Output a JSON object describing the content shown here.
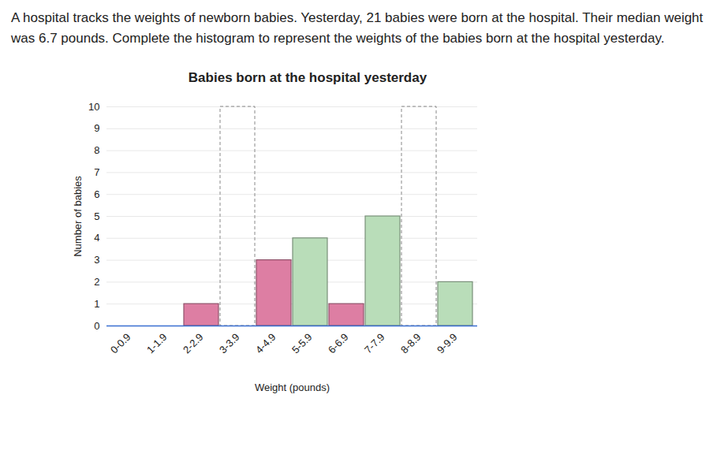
{
  "chart_data": {
    "type": "bar",
    "annotations": [
      "A hospital tracks the weights of newborn babies. Yesterday, 21 babies were born at the hospital. Their median weight was 6.7 pounds. Complete the histogram to represent the weights of the babies born at the hospital yesterday."
    ],
    "title": "Babies born at the hospital yesterday",
    "x_label": "Weight (pounds)",
    "y_label": "Number of babies",
    "categories": [
      "0-0.9",
      "1-1.9",
      "2-2.9",
      "3-3.9",
      "4-4.9",
      "5-5.9",
      "6-6.9",
      "7-7.9",
      "8-8.9",
      "9-9.9"
    ],
    "values": [
      0,
      0,
      1,
      null,
      3,
      4,
      1,
      5,
      null,
      2
    ],
    "colors": [
      "#dd7ea3",
      "#dd7ea3",
      "#dd7ea3",
      null,
      "#dd7ea3",
      "#b9ddb9",
      "#dd7ea3",
      "#b9ddb9",
      null,
      "#b9ddb9"
    ],
    "ylim": [
      0,
      10
    ],
    "yticks": [
      0,
      1,
      2,
      3,
      4,
      5,
      6,
      7,
      8,
      9,
      10
    ],
    "grid": true
  }
}
